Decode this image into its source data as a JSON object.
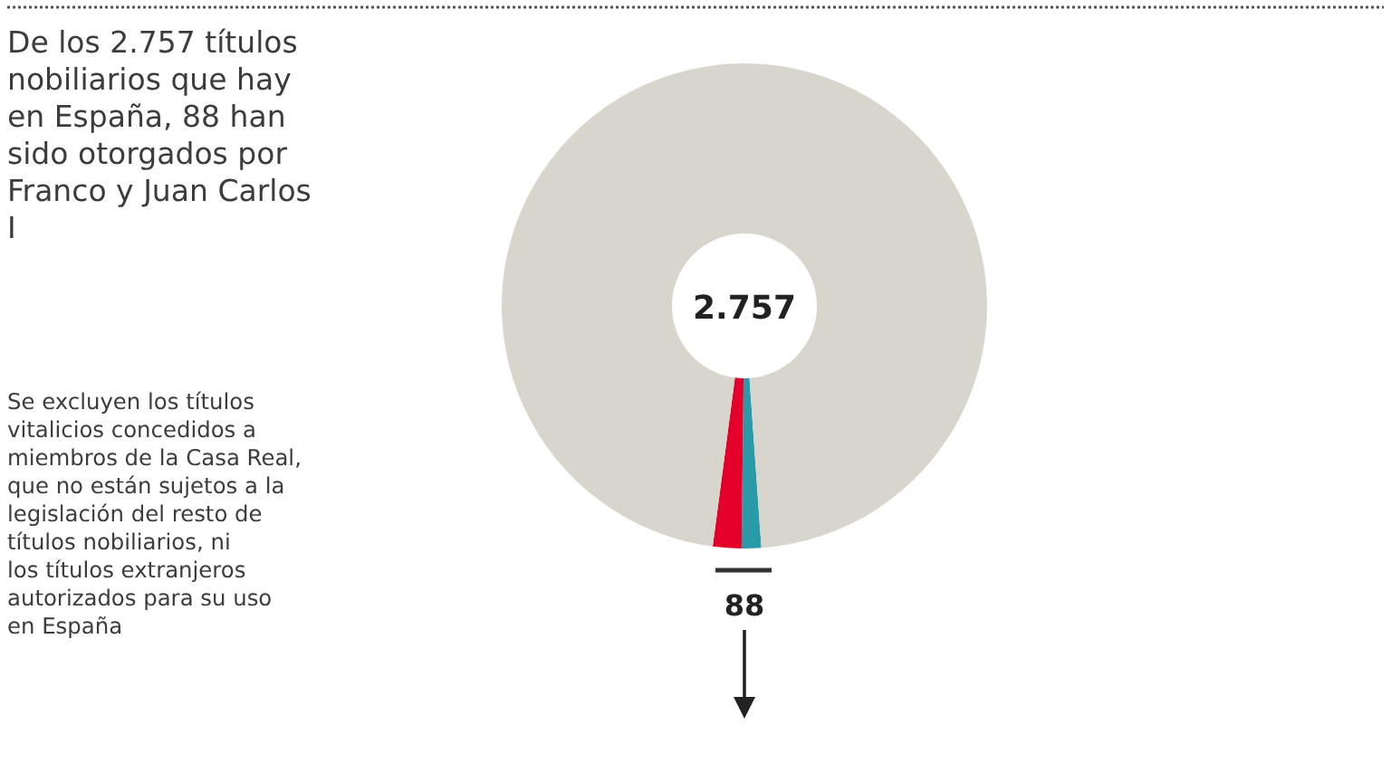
{
  "chart_data": {
    "type": "donut",
    "title": "De los 2.757 títulos nobiliarios que hay en España, 88 han sido otorgados por Franco y Juan Carlos I",
    "categories": [
      null,
      null,
      null
    ],
    "values": [
      1.3,
      1.9,
      96.8
    ],
    "colors": [
      "#2a9aa8",
      "#e4002b",
      "#d8d5cc"
    ],
    "annotations": [
      "2.757",
      "88",
      "Se excluyen los títulos vitalicios concedidos a miembros de la Casa Real, que no están sujetos a la legislación del resto de títulos nobiliarios, ni los títulos extranjeros autorizados para su uso en España"
    ]
  }
}
